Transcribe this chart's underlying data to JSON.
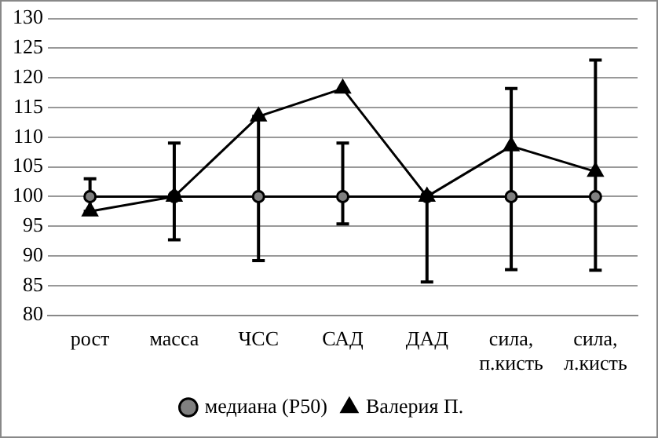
{
  "chart_data": {
    "type": "line",
    "categories": [
      "рост",
      "масса",
      "ЧСС",
      "САД",
      "ДАД",
      "сила, п.кисть",
      "сила, л.кисть"
    ],
    "series": [
      {
        "name": "медиана (P50)",
        "color": "#000000",
        "marker": "circle",
        "values": [
          100,
          100,
          100,
          100,
          100,
          100,
          100
        ],
        "errors": [
          [
            97.5,
            103
          ],
          [
            92.7,
            109
          ],
          [
            89.2,
            113.5
          ],
          [
            95.4,
            109
          ],
          [
            85.6,
            100
          ],
          [
            87.7,
            118.2
          ],
          [
            87.6,
            123
          ]
        ]
      },
      {
        "name": "Валерия П.",
        "color": "#000000",
        "marker": "triangle",
        "values": [
          97.5,
          100,
          113.5,
          118.2,
          100,
          108.5,
          104.2
        ]
      }
    ],
    "ylim": [
      80,
      130
    ],
    "yticks": [
      80,
      85,
      90,
      95,
      100,
      105,
      110,
      115,
      120,
      125,
      130
    ],
    "grid": "y",
    "legend": "bottom"
  }
}
